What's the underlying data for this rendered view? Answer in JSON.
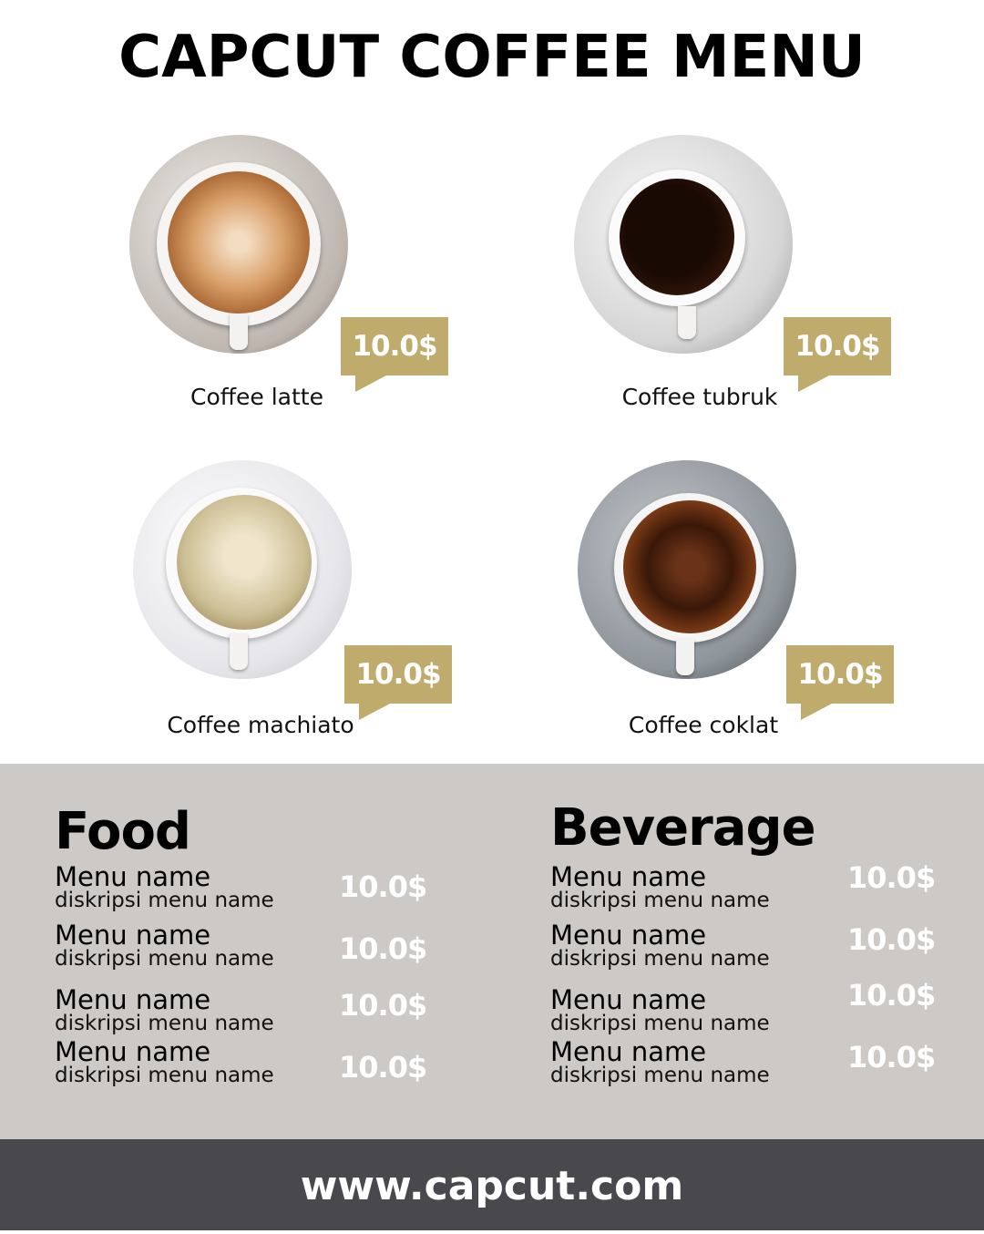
{
  "title": "CAPCUT COFFEE MENU",
  "colors": {
    "accent": "#bfab6b",
    "section_bg": "#ccc9c6",
    "footer_bg": "#49484d"
  },
  "coffees": [
    {
      "name": "Coffee latte",
      "price": "10.0$"
    },
    {
      "name": "Coffee tubruk",
      "price": "10.0$"
    },
    {
      "name": "Coffee machiato",
      "price": "10.0$"
    },
    {
      "name": "Coffee coklat",
      "price": "10.0$"
    }
  ],
  "food": {
    "heading": "Food",
    "items": [
      {
        "name": "Menu name",
        "desc": "diskripsi menu name",
        "price": "10.0$"
      },
      {
        "name": "Menu name",
        "desc": "diskripsi menu name",
        "price": "10.0$"
      },
      {
        "name": "Menu name",
        "desc": "diskripsi menu name",
        "price": "10.0$"
      },
      {
        "name": "Menu name",
        "desc": "diskripsi menu name",
        "price": "10.0$"
      }
    ]
  },
  "beverage": {
    "heading": "Beverage",
    "items": [
      {
        "name": "Menu name",
        "desc": "diskripsi menu name",
        "price": "10.0$"
      },
      {
        "name": "Menu name",
        "desc": "diskripsi menu name",
        "price": "10.0$"
      },
      {
        "name": "Menu name",
        "desc": "diskripsi menu name",
        "price": "10.0$"
      },
      {
        "name": "Menu name",
        "desc": "diskripsi menu name",
        "price": "10.0$"
      }
    ]
  },
  "footer": "www.capcut.com"
}
